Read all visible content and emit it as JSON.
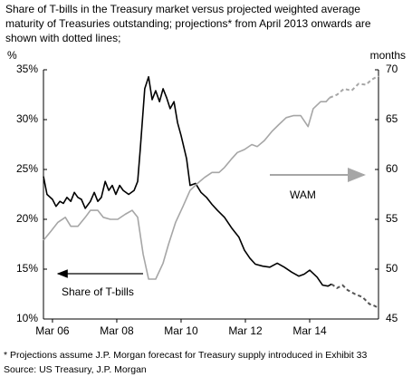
{
  "chart_data": {
    "type": "line",
    "title": [
      "Share of T-bills in the Treasury market versus projected weighted average",
      "maturity of Treasuries outstanding; projections* from April 2013 onwards are",
      "shown with dotted lines;"
    ],
    "ylabel": "%",
    "y2label": "months",
    "xlim": [
      2005.89,
      2016.31
    ],
    "xticks": [
      {
        "value": 2006.17,
        "label": "Mar 06"
      },
      {
        "value": 2008.17,
        "label": "Mar 08"
      },
      {
        "value": 2010.17,
        "label": "Mar 10"
      },
      {
        "value": 2012.17,
        "label": "Mar 12"
      },
      {
        "value": 2014.17,
        "label": "Mar 14"
      }
    ],
    "ylim": [
      10,
      35
    ],
    "yticks": [
      {
        "value": 10,
        "label": "10%"
      },
      {
        "value": 15,
        "label": "15%"
      },
      {
        "value": 20,
        "label": "20%"
      },
      {
        "value": 25,
        "label": "25%"
      },
      {
        "value": 30,
        "label": "30%"
      },
      {
        "value": 35,
        "label": "35%"
      }
    ],
    "y2lim": [
      45,
      70
    ],
    "y2ticks": [
      45,
      50,
      55,
      60,
      65,
      70
    ],
    "grid": false,
    "series": [
      {
        "name": "Share of T-bills",
        "color": "#000000",
        "axis": "y",
        "x": [
          2005.89,
          2006.0,
          2006.17,
          2006.28,
          2006.4,
          2006.51,
          2006.62,
          2006.74,
          2006.85,
          2006.96,
          2007.07,
          2007.19,
          2007.35,
          2007.47,
          2007.58,
          2007.69,
          2007.81,
          2007.92,
          2008.03,
          2008.14,
          2008.26,
          2008.37,
          2008.54,
          2008.71,
          2008.82,
          2008.9,
          2009.04,
          2009.16,
          2009.27,
          2009.38,
          2009.5,
          2009.61,
          2009.72,
          2009.83,
          2009.95,
          2010.06,
          2010.17,
          2010.34,
          2010.45,
          2010.62,
          2010.79,
          2010.96,
          2011.13,
          2011.3,
          2011.52,
          2011.75,
          2011.97,
          2012.14,
          2012.31,
          2012.48,
          2012.71,
          2012.93,
          2013.16,
          2013.38,
          2013.61,
          2013.83,
          2014.0,
          2014.17,
          2014.4,
          2014.57,
          2014.74,
          2014.85
        ],
        "values": [
          24.3,
          22.5,
          22.0,
          21.3,
          21.8,
          21.6,
          22.2,
          21.8,
          22.7,
          22.2,
          22.0,
          21.1,
          21.8,
          22.7,
          21.8,
          22.2,
          23.8,
          22.9,
          23.4,
          22.5,
          23.4,
          22.9,
          22.5,
          22.9,
          23.8,
          27.0,
          33.1,
          34.3,
          32.0,
          32.9,
          31.8,
          33.1,
          32.2,
          31.1,
          31.8,
          29.7,
          28.4,
          26.1,
          23.4,
          23.6,
          22.7,
          22.2,
          21.5,
          20.9,
          20.2,
          19.1,
          18.2,
          16.9,
          16.1,
          15.5,
          15.3,
          15.2,
          15.6,
          15.2,
          14.7,
          14.3,
          14.5,
          14.9,
          14.2,
          13.4,
          13.3,
          13.5
        ]
      },
      {
        "color": "#555555",
        "axis": "y",
        "dashed": true,
        "x": [
          2014.85,
          2015.02,
          2015.19,
          2015.35,
          2015.58,
          2015.81,
          2016.03,
          2016.2,
          2016.31
        ],
        "values": [
          13.5,
          13.1,
          13.4,
          12.9,
          12.5,
          12.2,
          11.5,
          11.3,
          11.1
        ]
      },
      {
        "name": "WAM",
        "color": "#a6a6a6",
        "axis": "y2",
        "x": [
          2005.89,
          2006.12,
          2006.34,
          2006.57,
          2006.74,
          2006.96,
          2007.19,
          2007.35,
          2007.58,
          2007.75,
          2007.97,
          2008.2,
          2008.43,
          2008.65,
          2008.82,
          2008.99,
          2009.16,
          2009.38,
          2009.61,
          2009.78,
          2010.0,
          2010.23,
          2010.45,
          2010.68,
          2010.9,
          2011.13,
          2011.35,
          2011.52,
          2011.75,
          2011.92,
          2012.14,
          2012.37,
          2012.54,
          2012.76,
          2012.99,
          2013.21,
          2013.44,
          2013.66,
          2013.89,
          2014.12,
          2014.28,
          2014.51,
          2014.68,
          2014.79
        ],
        "values": [
          52.9,
          53.8,
          54.7,
          55.2,
          54.3,
          54.3,
          55.2,
          55.9,
          55.9,
          55.2,
          55.0,
          55.0,
          55.5,
          55.9,
          55.2,
          51.5,
          49.0,
          49.0,
          50.6,
          52.5,
          54.7,
          56.3,
          57.9,
          58.6,
          59.2,
          59.7,
          59.7,
          60.2,
          61.1,
          61.7,
          62.0,
          62.5,
          62.3,
          62.9,
          63.8,
          64.5,
          65.2,
          65.4,
          65.4,
          64.3,
          66.1,
          66.8,
          66.8,
          67.2
        ]
      },
      {
        "color": "#a6a6a6",
        "axis": "y2",
        "dashed": true,
        "x": [
          2014.79,
          2015.02,
          2015.24,
          2015.47,
          2015.69,
          2015.92,
          2016.09,
          2016.31
        ],
        "values": [
          67.2,
          67.5,
          68.1,
          67.9,
          68.6,
          68.5,
          69.0,
          69.4
        ]
      }
    ],
    "footnotes": [
      "* Projections assume J.P. Morgan forecast for Treasury supply introduced in Exhibit 33",
      "Source: US Treasury, J.P. Morgan"
    ]
  }
}
